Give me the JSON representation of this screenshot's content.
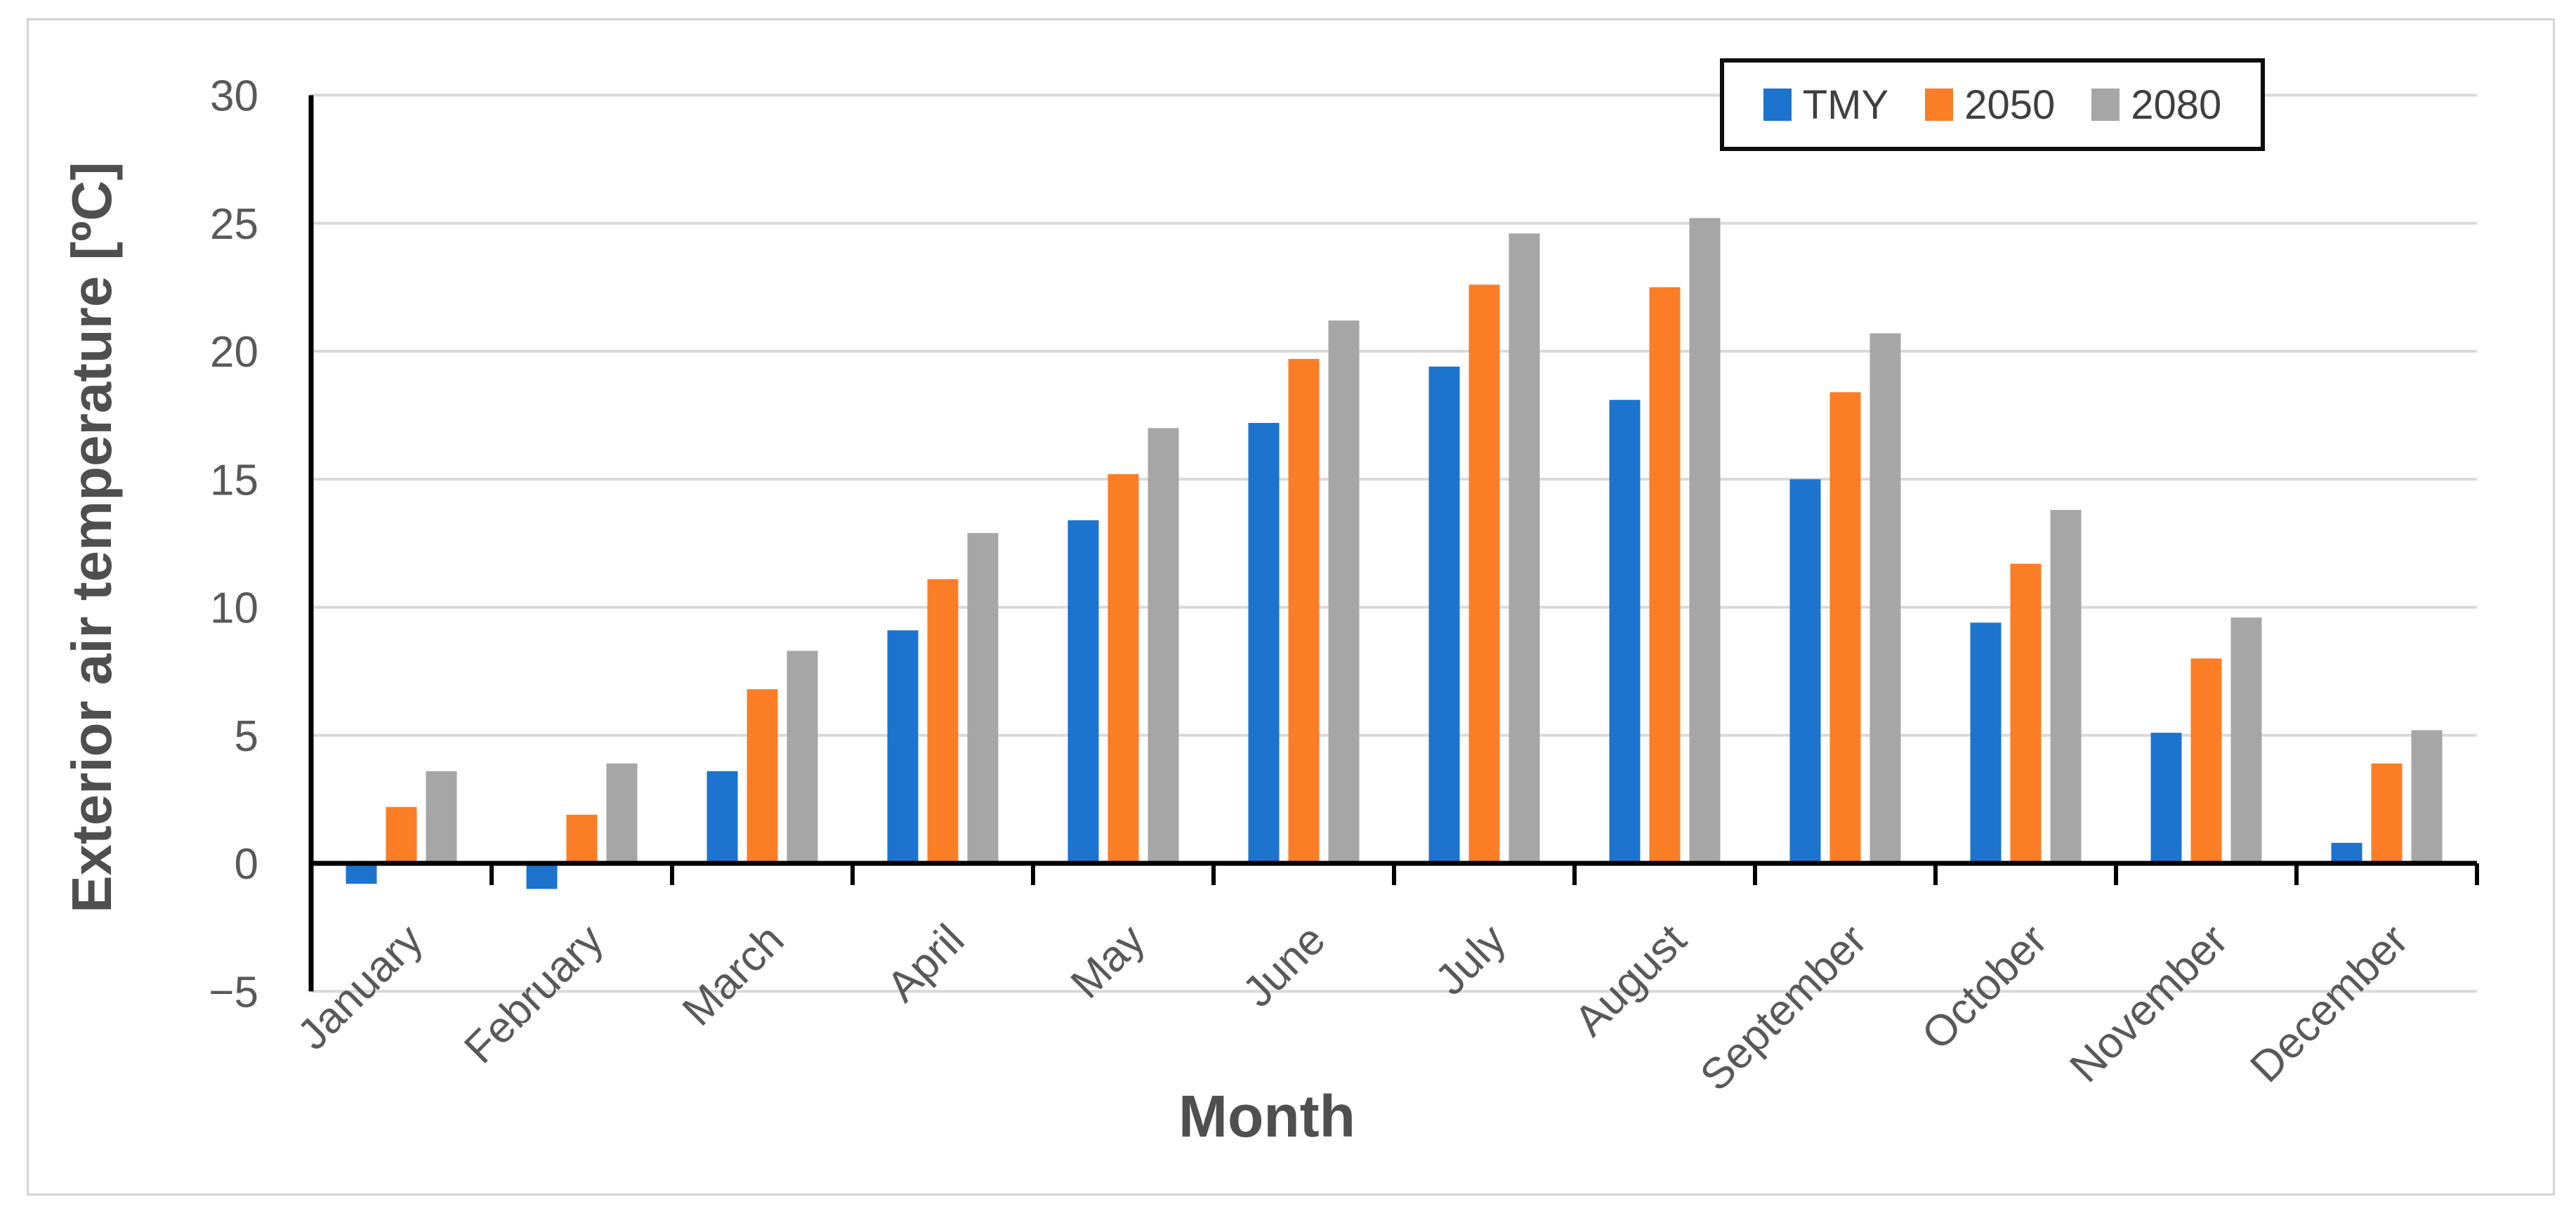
{
  "figure": {
    "background": "#ffffff",
    "border_color": "#d4d4d4"
  },
  "chart_data": {
    "type": "bar",
    "title": "",
    "xlabel": "Month",
    "ylabel": "Exterior air temperature [ºC]",
    "categories": [
      "January",
      "February",
      "March",
      "April",
      "May",
      "June",
      "July",
      "August",
      "September",
      "October",
      "November",
      "December"
    ],
    "series": [
      {
        "name": "TMY",
        "color": "#1c74ce",
        "values": [
          -0.8,
          -1.0,
          3.6,
          9.1,
          13.4,
          17.2,
          19.4,
          18.1,
          15.0,
          9.4,
          5.1,
          0.8
        ]
      },
      {
        "name": "2050",
        "color": "#fb7d26",
        "values": [
          2.2,
          1.9,
          6.8,
          11.1,
          15.2,
          19.7,
          22.6,
          22.5,
          18.4,
          11.7,
          8.0,
          3.9
        ]
      },
      {
        "name": "2080",
        "color": "#a6a6a6",
        "values": [
          3.6,
          3.9,
          8.3,
          12.9,
          17.0,
          21.2,
          24.6,
          25.2,
          20.7,
          13.8,
          9.6,
          5.2
        ]
      }
    ],
    "ylim": [
      -5,
      30
    ],
    "ytick_step": 5,
    "yticks": [
      -5,
      0,
      5,
      10,
      15,
      20,
      25,
      30
    ],
    "grid": "horizontal",
    "legend_position": "top-right",
    "style": {
      "gridline_color": "#d9d9d9",
      "axis_line_color": "#000000",
      "tick_label_color": "#595959",
      "axis_title_color": "#4f4f4f",
      "legend_border_color": "#0d0d0d"
    }
  }
}
